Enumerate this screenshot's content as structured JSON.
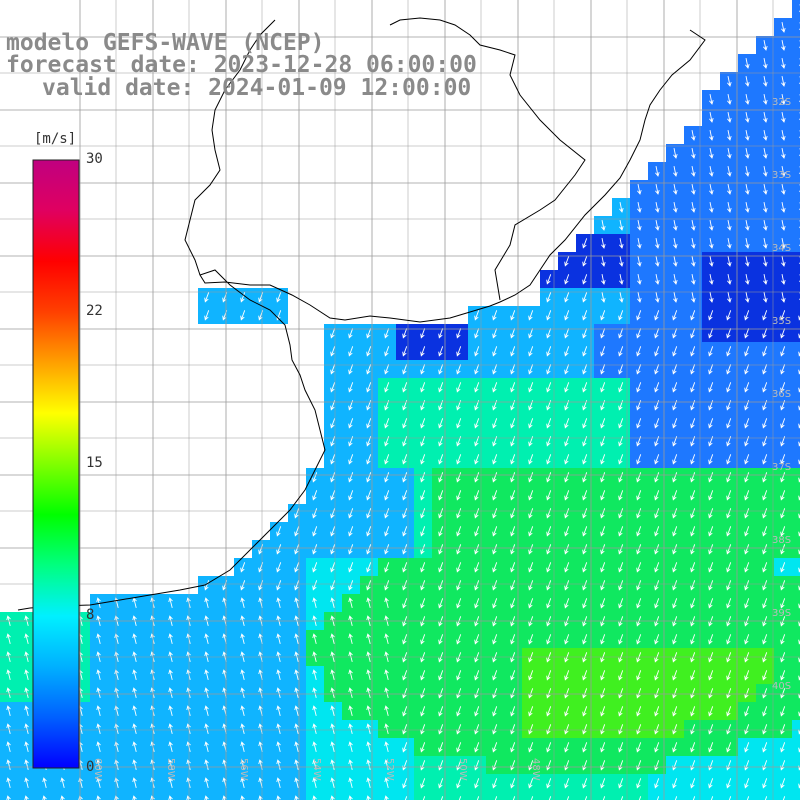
{
  "title": {
    "model": "modelo GEFS-WAVE (NCEP)",
    "forecast": "forecast date: 2023-12-28 06:00:00",
    "valid": "valid date: 2024-01-09 12:00:00"
  },
  "colorbar": {
    "unit": "[m/s]",
    "ticks": [
      "30",
      "22",
      "15",
      "8",
      "0"
    ],
    "colors": [
      "#0000ff",
      "#0060ff",
      "#00b0ff",
      "#00f0ff",
      "#00ff80",
      "#00ff00",
      "#80ff00",
      "#ffff00",
      "#ffa000",
      "#ff4000",
      "#ff0000",
      "#e00060",
      "#c00080"
    ]
  },
  "map": {
    "lon_labels": [
      "60W",
      "58W",
      "56W",
      "54W",
      "52W",
      "50W",
      "48W"
    ],
    "lat_labels": [
      "32S",
      "33S",
      "34S",
      "35S",
      "36S",
      "37S",
      "38S",
      "39S",
      "40S"
    ],
    "field_colors": {
      "land": "#ffffff",
      "grid": "#9a9a9a",
      "coast": "#000000",
      "arrow": "#ffffff",
      "deep_blue": "#0a32e0",
      "blue": "#1e78ff",
      "light_blue": "#10b4ff",
      "cyan": "#00e6f0",
      "cyan_green": "#00f0b0",
      "green": "#10e860",
      "bright_green": "#40f020"
    }
  }
}
